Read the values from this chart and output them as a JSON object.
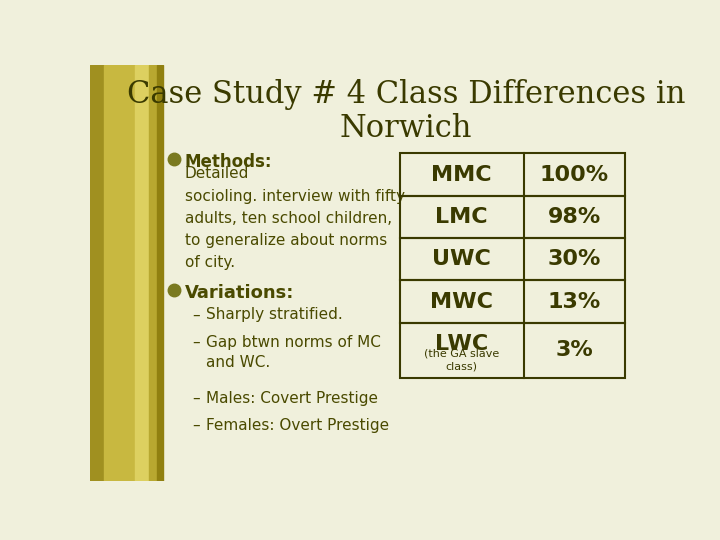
{
  "title_line1": "Case Study # 4 Class Differences in",
  "title_line2": "Norwich",
  "title_color": "#3a3a00",
  "title_fontsize": 22,
  "bg_color": "#f0f0dc",
  "text_color": "#4a4a00",
  "bullet_color": "#7a7a20",
  "methods_bold": "Methods:",
  "methods_rest": " Detailed\nsocioling. interview with fifty\nadults, ten school children,\nto generalize about norms\nof city.",
  "variations_bold": "Variations:",
  "bullet_items": [
    "Sharply stratified.",
    "Gap btwn norms of MC\nand WC.",
    "Males: Covert Prestige",
    "Females: Overt Prestige"
  ],
  "table_rows": [
    [
      "MMC",
      "100%"
    ],
    [
      "LMC",
      "98%"
    ],
    [
      "UWC",
      "30%"
    ],
    [
      "MWC",
      "13%"
    ],
    [
      "LWC\n(the GA slave\nclass)",
      "3%"
    ]
  ],
  "table_border_color": "#3a3a00",
  "table_text_color": "#3a3a00",
  "stripe_colors": [
    "#b0a030",
    "#c8b840",
    "#ddd060",
    "#c0b040",
    "#a09020"
  ]
}
